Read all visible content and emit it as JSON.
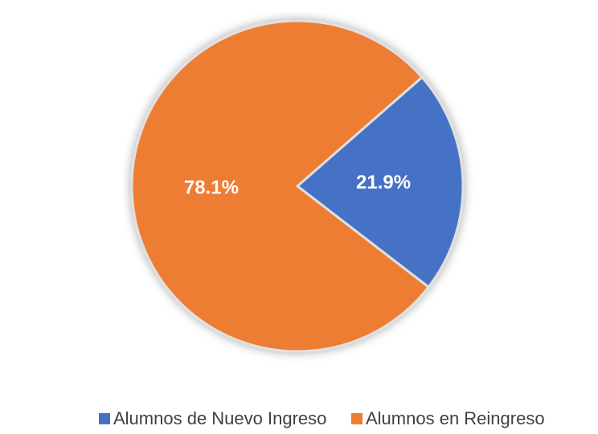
{
  "chart_data": {
    "type": "pie",
    "categories": [
      "Alumnos de Nuevo Ingreso",
      "Alumnos en Reingreso"
    ],
    "values": [
      21.9,
      78.1
    ],
    "value_labels": [
      "21.9%",
      "78.1%"
    ],
    "colors": [
      "#4472c4",
      "#ed7d31"
    ],
    "legend": "bottom"
  }
}
